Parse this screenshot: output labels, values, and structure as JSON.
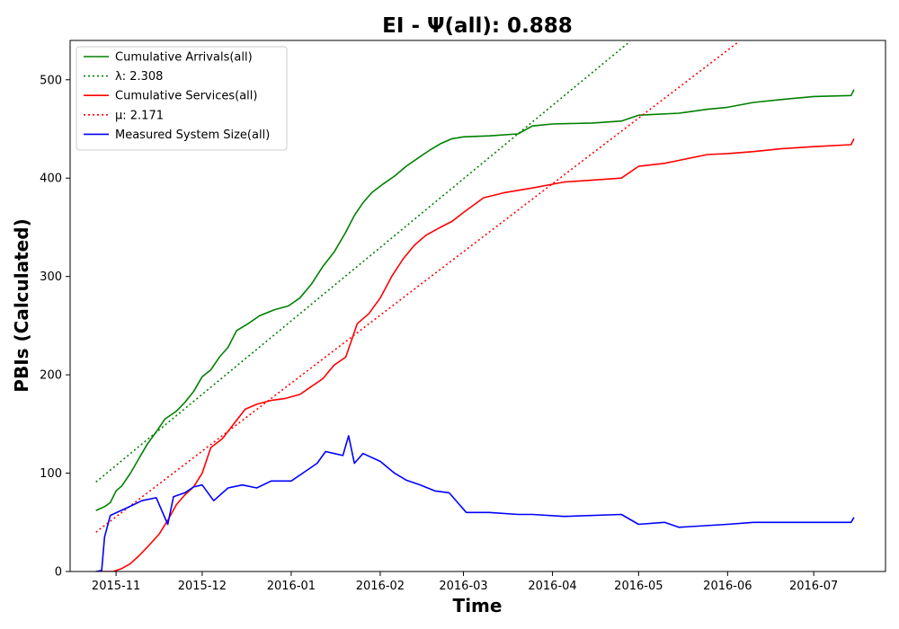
{
  "chart_data": {
    "type": "line",
    "title": "EI -  Ψ(all): 0.888",
    "xlabel": "Time",
    "ylabel": "PBIs (Calculated)",
    "xlim": [
      "2015-10-16",
      "2016-07-26"
    ],
    "ylim": [
      0,
      540
    ],
    "x_ticks": [
      "2015-11",
      "2015-12",
      "2016-01",
      "2016-02",
      "2016-03",
      "2016-04",
      "2016-05",
      "2016-06",
      "2016-07"
    ],
    "y_ticks": [
      0,
      100,
      200,
      300,
      400,
      500
    ],
    "grid": false,
    "legend_position": "top-left",
    "series": [
      {
        "name": "Cumulative Arrivals(all)",
        "color": "#008000",
        "style": "solid",
        "x": [
          "2015-10-25",
          "2015-10-28",
          "2015-10-30",
          "2015-11-01",
          "2015-11-03",
          "2015-11-06",
          "2015-11-09",
          "2015-11-12",
          "2015-11-15",
          "2015-11-18",
          "2015-11-22",
          "2015-11-25",
          "2015-11-28",
          "2015-12-01",
          "2015-12-04",
          "2015-12-07",
          "2015-12-10",
          "2015-12-13",
          "2015-12-17",
          "2015-12-21",
          "2015-12-26",
          "2015-12-31",
          "2016-01-04",
          "2016-01-08",
          "2016-01-12",
          "2016-01-16",
          "2016-01-20",
          "2016-01-23",
          "2016-01-26",
          "2016-01-29",
          "2016-02-02",
          "2016-02-06",
          "2016-02-10",
          "2016-02-14",
          "2016-02-18",
          "2016-02-22",
          "2016-02-26",
          "2016-03-01",
          "2016-03-10",
          "2016-03-20",
          "2016-03-25",
          "2016-04-01",
          "2016-04-15",
          "2016-04-25",
          "2016-05-01",
          "2016-05-15",
          "2016-05-25",
          "2016-06-01",
          "2016-06-10",
          "2016-06-20",
          "2016-07-01",
          "2016-07-14",
          "2016-07-15"
        ],
        "y": [
          62,
          66,
          70,
          82,
          87,
          100,
          115,
          130,
          142,
          155,
          163,
          172,
          183,
          198,
          205,
          218,
          228,
          245,
          252,
          260,
          266,
          270,
          278,
          292,
          310,
          325,
          345,
          362,
          375,
          385,
          394,
          402,
          412,
          420,
          428,
          435,
          440,
          442,
          443,
          445,
          453,
          455,
          456,
          458,
          464,
          466,
          470,
          472,
          477,
          480,
          483,
          484,
          490
        ]
      },
      {
        "name": "λ: 2.308",
        "color": "#008000",
        "style": "dotted",
        "x": [
          "2015-10-25",
          "2016-04-28"
        ],
        "y": [
          91,
          539
        ]
      },
      {
        "name": "Cumulative Services(all)",
        "color": "#ff0000",
        "style": "solid",
        "x": [
          "2015-10-25",
          "2015-10-31",
          "2015-11-03",
          "2015-11-06",
          "2015-11-09",
          "2015-11-12",
          "2015-11-16",
          "2015-11-19",
          "2015-11-22",
          "2015-11-25",
          "2015-11-28",
          "2015-12-01",
          "2015-12-04",
          "2015-12-08",
          "2015-12-12",
          "2015-12-16",
          "2015-12-20",
          "2015-12-25",
          "2015-12-30",
          "2016-01-04",
          "2016-01-08",
          "2016-01-12",
          "2016-01-16",
          "2016-01-20",
          "2016-01-24",
          "2016-01-28",
          "2016-02-01",
          "2016-02-05",
          "2016-02-09",
          "2016-02-13",
          "2016-02-17",
          "2016-02-22",
          "2016-02-26",
          "2016-03-01",
          "2016-03-08",
          "2016-03-15",
          "2016-03-25",
          "2016-04-05",
          "2016-04-15",
          "2016-04-25",
          "2016-05-01",
          "2016-05-10",
          "2016-05-15",
          "2016-05-25",
          "2016-06-01",
          "2016-06-10",
          "2016-06-20",
          "2016-07-01",
          "2016-07-14",
          "2016-07-15"
        ],
        "y": [
          0,
          0,
          3,
          8,
          16,
          25,
          38,
          52,
          68,
          78,
          86,
          100,
          126,
          135,
          150,
          165,
          170,
          174,
          176,
          180,
          188,
          196,
          210,
          218,
          252,
          262,
          278,
          300,
          318,
          332,
          342,
          350,
          356,
          365,
          380,
          385,
          390,
          396,
          398,
          400,
          412,
          415,
          418,
          424,
          425,
          427,
          430,
          432,
          434,
          440
        ]
      },
      {
        "name": "μ: 2.171",
        "color": "#ff0000",
        "style": "dotted",
        "x": [
          "2015-10-25",
          "2016-06-05"
        ],
        "y": [
          40,
          539
        ]
      },
      {
        "name": "Measured System Size(all)",
        "color": "#0000ff",
        "style": "solid",
        "x": [
          "2015-10-25",
          "2015-10-27",
          "2015-10-28",
          "2015-10-30",
          "2015-11-05",
          "2015-11-10",
          "2015-11-15",
          "2015-11-19",
          "2015-11-21",
          "2015-11-25",
          "2015-11-28",
          "2015-12-01",
          "2015-12-05",
          "2015-12-10",
          "2015-12-15",
          "2015-12-20",
          "2015-12-25",
          "2016-01-01",
          "2016-01-05",
          "2016-01-10",
          "2016-01-13",
          "2016-01-16",
          "2016-01-19",
          "2016-01-21",
          "2016-01-23",
          "2016-01-26",
          "2016-02-01",
          "2016-02-06",
          "2016-02-10",
          "2016-02-15",
          "2016-02-20",
          "2016-02-25",
          "2016-03-02",
          "2016-03-10",
          "2016-03-20",
          "2016-03-25",
          "2016-04-05",
          "2016-04-25",
          "2016-05-01",
          "2016-05-10",
          "2016-05-15",
          "2016-06-01",
          "2016-06-10",
          "2016-06-20",
          "2016-07-01",
          "2016-07-14",
          "2016-07-15"
        ],
        "y": [
          0,
          1,
          35,
          57,
          65,
          72,
          75,
          48,
          76,
          80,
          86,
          88,
          72,
          85,
          88,
          85,
          92,
          92,
          100,
          110,
          122,
          120,
          118,
          138,
          110,
          120,
          112,
          100,
          93,
          88,
          82,
          80,
          60,
          60,
          58,
          58,
          56,
          58,
          48,
          50,
          45,
          48,
          50,
          50,
          50,
          50,
          55
        ]
      }
    ]
  }
}
